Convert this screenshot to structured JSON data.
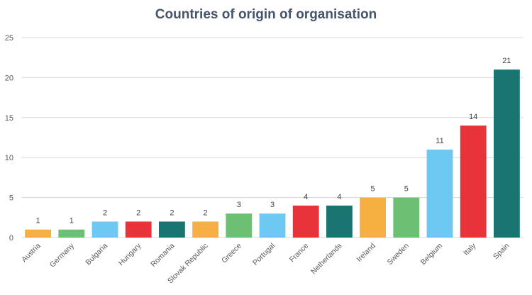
{
  "chart_data": {
    "type": "bar",
    "title": "Countries of origin of organisation",
    "xlabel": "",
    "ylabel": "",
    "ylim": [
      0,
      25
    ],
    "yticks": [
      0,
      5,
      10,
      15,
      20,
      25
    ],
    "grid": true,
    "legend": "none",
    "categories": [
      "Austria",
      "Germany",
      "Bulgaria",
      "Hungary",
      "Romania",
      "Slovak Republic",
      "Greece",
      "Portugal",
      "France",
      "Netherlands",
      "Ireland",
      "Sweden",
      "Belgium",
      "Italy",
      "Spain"
    ],
    "values": [
      1,
      1,
      2,
      2,
      2,
      2,
      3,
      3,
      4,
      4,
      5,
      5,
      11,
      14,
      21
    ],
    "colors": [
      "#f5b041",
      "#6cbf73",
      "#6ec9f2",
      "#e8333a",
      "#1a7470",
      "#f5b041",
      "#6cbf73",
      "#6ec9f2",
      "#e8333a",
      "#1a7470",
      "#f5b041",
      "#6cbf73",
      "#6ec9f2",
      "#e8333a",
      "#1a7470"
    ]
  }
}
